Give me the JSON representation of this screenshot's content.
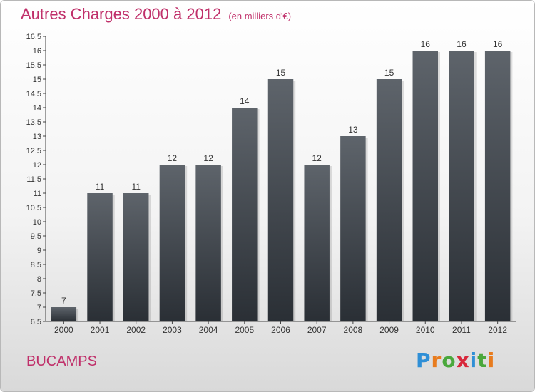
{
  "header": {
    "title": "Autres Charges 2000 à 2012",
    "unit": "(en milliers d'€)"
  },
  "commune": "BUCAMPS",
  "logo": {
    "letters": [
      "P",
      "r",
      "o",
      "x",
      "i",
      "t",
      "i"
    ],
    "colors": [
      "#2f8fd6",
      "#e87c1e",
      "#4aa83c",
      "#d8283c",
      "#2f8fd6",
      "#4aa83c",
      "#e87c1e"
    ]
  },
  "colors": {
    "accent": "#c0306a",
    "bar_top": "#5e646b",
    "bar_bottom": "#2a2f35"
  },
  "chart_data": {
    "type": "bar",
    "categories": [
      "2000",
      "2001",
      "2002",
      "2003",
      "2004",
      "2005",
      "2006",
      "2007",
      "2008",
      "2009",
      "2010",
      "2011",
      "2012"
    ],
    "values": [
      7,
      11,
      11,
      12,
      12,
      14,
      15,
      12,
      13,
      15,
      16,
      16,
      16
    ],
    "data_labels": [
      "7",
      "11",
      "11",
      "12",
      "12",
      "14",
      "15",
      "12",
      "13",
      "15",
      "16",
      "16",
      "16"
    ],
    "ylim": [
      6.5,
      16.5
    ],
    "yticks": [
      "6.5",
      "7",
      "7.5",
      "8",
      "8.5",
      "9",
      "9.5",
      "10",
      "10.5",
      "11",
      "11.5",
      "12",
      "12.5",
      "13",
      "13.5",
      "14",
      "14.5",
      "15",
      "15.5",
      "16",
      "16.5"
    ],
    "grid": false,
    "legend": "none"
  }
}
